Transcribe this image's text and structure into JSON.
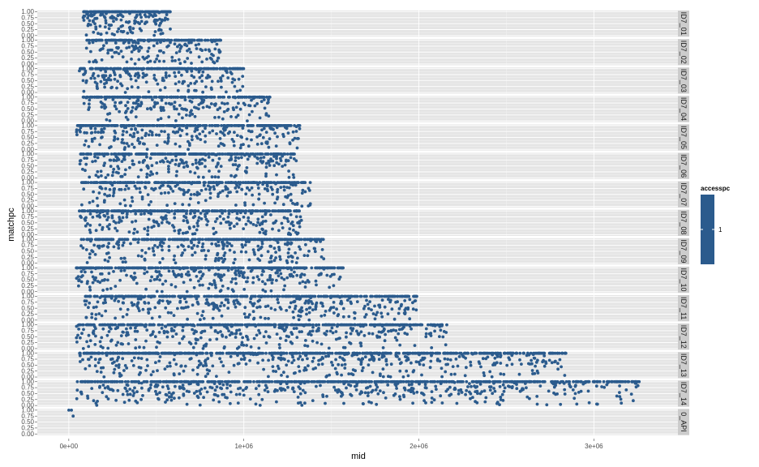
{
  "chart_data": {
    "type": "scatter",
    "xlabel": "mid",
    "ylabel": "matchpc",
    "xlim": [
      -180000,
      3480000
    ],
    "ylim": [
      -0.05,
      1.05
    ],
    "x_ticks": [
      0,
      1000000,
      2000000,
      3000000
    ],
    "x_tick_labels": [
      "0e+00",
      "1e+06",
      "2e+06",
      "3e+06"
    ],
    "y_ticks": [
      0,
      0.25,
      0.5,
      0.75,
      1
    ],
    "y_tick_labels": [
      "0.00",
      "0.25",
      "0.50",
      "0.75",
      "1.00"
    ],
    "grid": true,
    "point_color": "#2b5b8d",
    "panel_background": "#e5e5e5",
    "strip_background": "#cccccc",
    "legend": {
      "title": "accesspc",
      "labels": [
        "1"
      ],
      "color": "#2b5b8d",
      "placement": "right"
    },
    "facets": [
      {
        "label": "ID7_01",
        "x_start": 80000,
        "x_end": 580000,
        "n": 230
      },
      {
        "label": "ID7_02",
        "x_start": 100000,
        "x_end": 870000,
        "n": 220
      },
      {
        "label": "ID7_03",
        "x_start": 60000,
        "x_end": 1000000,
        "n": 260
      },
      {
        "label": "ID7_04",
        "x_start": 80000,
        "x_end": 1150000,
        "n": 280
      },
      {
        "label": "ID7_05",
        "x_start": 40000,
        "x_end": 1320000,
        "n": 330
      },
      {
        "label": "ID7_06",
        "x_start": 60000,
        "x_end": 1300000,
        "n": 330
      },
      {
        "label": "ID7_07",
        "x_start": 70000,
        "x_end": 1380000,
        "n": 320
      },
      {
        "label": "ID7_08",
        "x_start": 60000,
        "x_end": 1330000,
        "n": 330
      },
      {
        "label": "ID7_09",
        "x_start": 60000,
        "x_end": 1460000,
        "n": 350
      },
      {
        "label": "ID7_10",
        "x_start": 40000,
        "x_end": 1570000,
        "n": 370
      },
      {
        "label": "ID7_11",
        "x_start": 90000,
        "x_end": 1990000,
        "n": 450
      },
      {
        "label": "ID7_12",
        "x_start": 40000,
        "x_end": 2160000,
        "n": 500
      },
      {
        "label": "ID7_13",
        "x_start": 60000,
        "x_end": 2840000,
        "n": 620
      },
      {
        "label": "ID7_14",
        "x_start": 40000,
        "x_end": 3260000,
        "n": 700
      },
      {
        "label": "0_API",
        "x_start": 0,
        "x_end": 30000,
        "n": 3,
        "points": [
          [
            0,
            1.0
          ],
          [
            15000,
            1.0
          ],
          [
            25000,
            0.75
          ]
        ]
      }
    ]
  }
}
